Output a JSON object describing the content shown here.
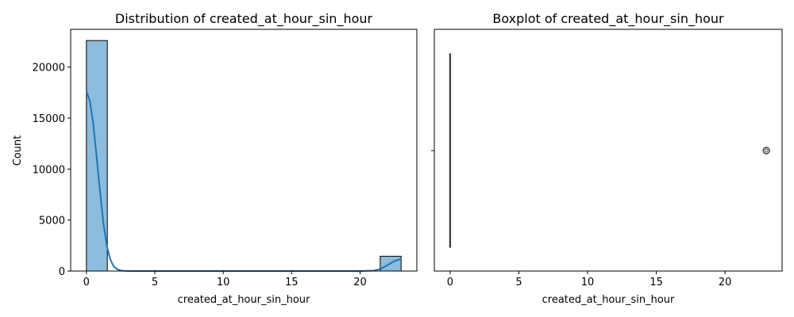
{
  "chart_data": [
    {
      "type": "bar",
      "subtype": "histogram-with-kde",
      "title": "Distribution of created_at_hour_sin_hour",
      "xlabel": "created_at_hour_sin_hour",
      "ylabel": "Count",
      "xlim": [
        -1.15,
        24.15
      ],
      "ylim": [
        0,
        23700
      ],
      "xticks": [
        0,
        5,
        10,
        15,
        20
      ],
      "yticks": [
        0,
        5000,
        10000,
        15000,
        20000
      ],
      "grid": false,
      "bar_color": "#8dbcdc",
      "bar_edge_color": "#000000",
      "bins": [
        {
          "x0": 0.0,
          "x1": 1.53,
          "count": 22600
        },
        {
          "x0": 1.53,
          "x1": 3.07,
          "count": 0
        },
        {
          "x0": 3.07,
          "x1": 4.6,
          "count": 0
        },
        {
          "x0": 4.6,
          "x1": 6.13,
          "count": 0
        },
        {
          "x0": 6.13,
          "x1": 7.67,
          "count": 0
        },
        {
          "x0": 7.67,
          "x1": 9.2,
          "count": 0
        },
        {
          "x0": 9.2,
          "x1": 10.73,
          "count": 0
        },
        {
          "x0": 10.73,
          "x1": 12.27,
          "count": 0
        },
        {
          "x0": 12.27,
          "x1": 13.8,
          "count": 0
        },
        {
          "x0": 13.8,
          "x1": 15.33,
          "count": 0
        },
        {
          "x0": 15.33,
          "x1": 16.87,
          "count": 0
        },
        {
          "x0": 16.87,
          "x1": 18.4,
          "count": 0
        },
        {
          "x0": 18.4,
          "x1": 19.93,
          "count": 0
        },
        {
          "x0": 19.93,
          "x1": 21.47,
          "count": 0
        },
        {
          "x0": 21.47,
          "x1": 23.0,
          "count": 1450
        }
      ],
      "kde": {
        "color": "#1f77b4",
        "x": [
          0.0,
          0.25,
          0.5,
          0.75,
          1.0,
          1.25,
          1.5,
          1.75,
          2.0,
          2.25,
          2.5,
          2.75,
          3.0,
          3.5,
          4.0,
          6.0,
          10.0,
          15.0,
          20.0,
          21.0,
          21.5,
          22.0,
          22.5,
          23.0
        ],
        "y": [
          17650,
          16700,
          14500,
          11200,
          7700,
          4600,
          2400,
          1100,
          450,
          170,
          60,
          20,
          5,
          0,
          0,
          0,
          0,
          0,
          0,
          40,
          200,
          580,
          960,
          1200
        ]
      }
    },
    {
      "type": "boxplot",
      "title": "Boxplot of created_at_hour_sin_hour",
      "xlabel": "created_at_hour_sin_hour",
      "ylabel": "",
      "xlim": [
        -1.15,
        24.15
      ],
      "xticks": [
        0,
        5,
        10,
        15,
        20
      ],
      "grid": false,
      "color": "#1f77b4",
      "box": {
        "q1": 0,
        "median": 0,
        "q3": 0,
        "whisker_low": 0,
        "whisker_high": 0
      },
      "outliers": [
        23
      ]
    }
  ]
}
